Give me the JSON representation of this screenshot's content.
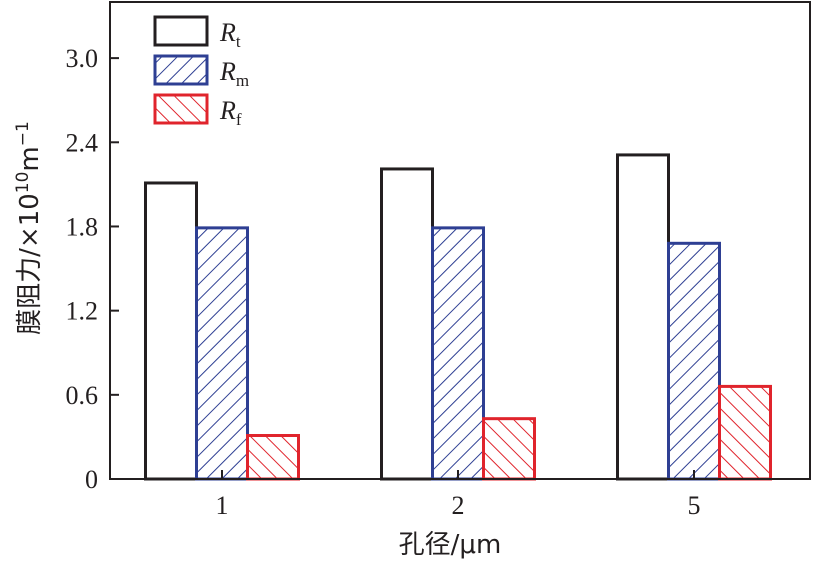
{
  "chart_data": {
    "type": "bar",
    "title": "",
    "xlabel": "孔径/μm",
    "ylabel": {
      "main": "膜阻力/×10",
      "exp": "10",
      "unit": "m",
      "unit_exp": "−1"
    },
    "categories": [
      "1",
      "2",
      "5"
    ],
    "ylim": [
      0,
      3.4
    ],
    "yticks": [
      {
        "value": 0,
        "label": "0"
      },
      {
        "value": 0.6,
        "label": "0.6"
      },
      {
        "value": 1.2,
        "label": "1.2"
      },
      {
        "value": 1.8,
        "label": "1.8"
      },
      {
        "value": 2.4,
        "label": "2.4"
      },
      {
        "value": 3.0,
        "label": "3.0"
      }
    ],
    "grid": false,
    "legend_position": "top-left",
    "series": [
      {
        "name": "R",
        "subscript": "t",
        "values": [
          2.11,
          2.21,
          2.31
        ],
        "stroke": "#231f20",
        "pattern": "none"
      },
      {
        "name": "R",
        "subscript": "m",
        "values": [
          1.79,
          1.79,
          1.68
        ],
        "stroke": "#2e3f93",
        "pattern": "forward-diagonal"
      },
      {
        "name": "R",
        "subscript": "f",
        "values": [
          0.31,
          0.43,
          0.66
        ],
        "stroke": "#e0242c",
        "pattern": "backward-diagonal"
      }
    ]
  }
}
